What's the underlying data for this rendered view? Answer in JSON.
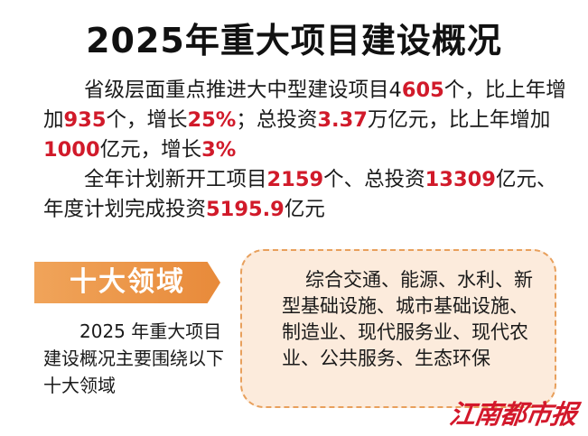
{
  "title": "2025年重大项目建设概况",
  "para1": {
    "t1": "省级层面重点推进大中型建设项目4",
    "n1": "605",
    "t2": "个，比上年增加",
    "n2": "935",
    "t3": "个，增长",
    "n3": "25%",
    "t4": "；总投资",
    "n4": "3.37",
    "t5": "万亿元，比上年增加",
    "n5": "1000",
    "t6": "亿元，增长",
    "n6": "3%"
  },
  "para2": {
    "t1": "全年计划新开工项目",
    "n1": "2159",
    "t2": "个、总投资",
    "n2": "13309",
    "t3": "亿元、年度计划完成投资",
    "n3": "5195.9",
    "t4": "亿元"
  },
  "section_tag": "十大领域",
  "section_desc": "2025 年重大项目建设概况主要围绕以下十大领域",
  "fields_text": "综合交通、能源、水利、新型基础设施、城市基础设施、制造业、现代服务业、现代农业、公共服务、生态环保",
  "logo_text": "江南都市报",
  "colors": {
    "highlight": "#d11a2a",
    "tag_orange": "#e88a3a",
    "box_bg": "#fcebdc",
    "box_border": "#e8a05c"
  }
}
